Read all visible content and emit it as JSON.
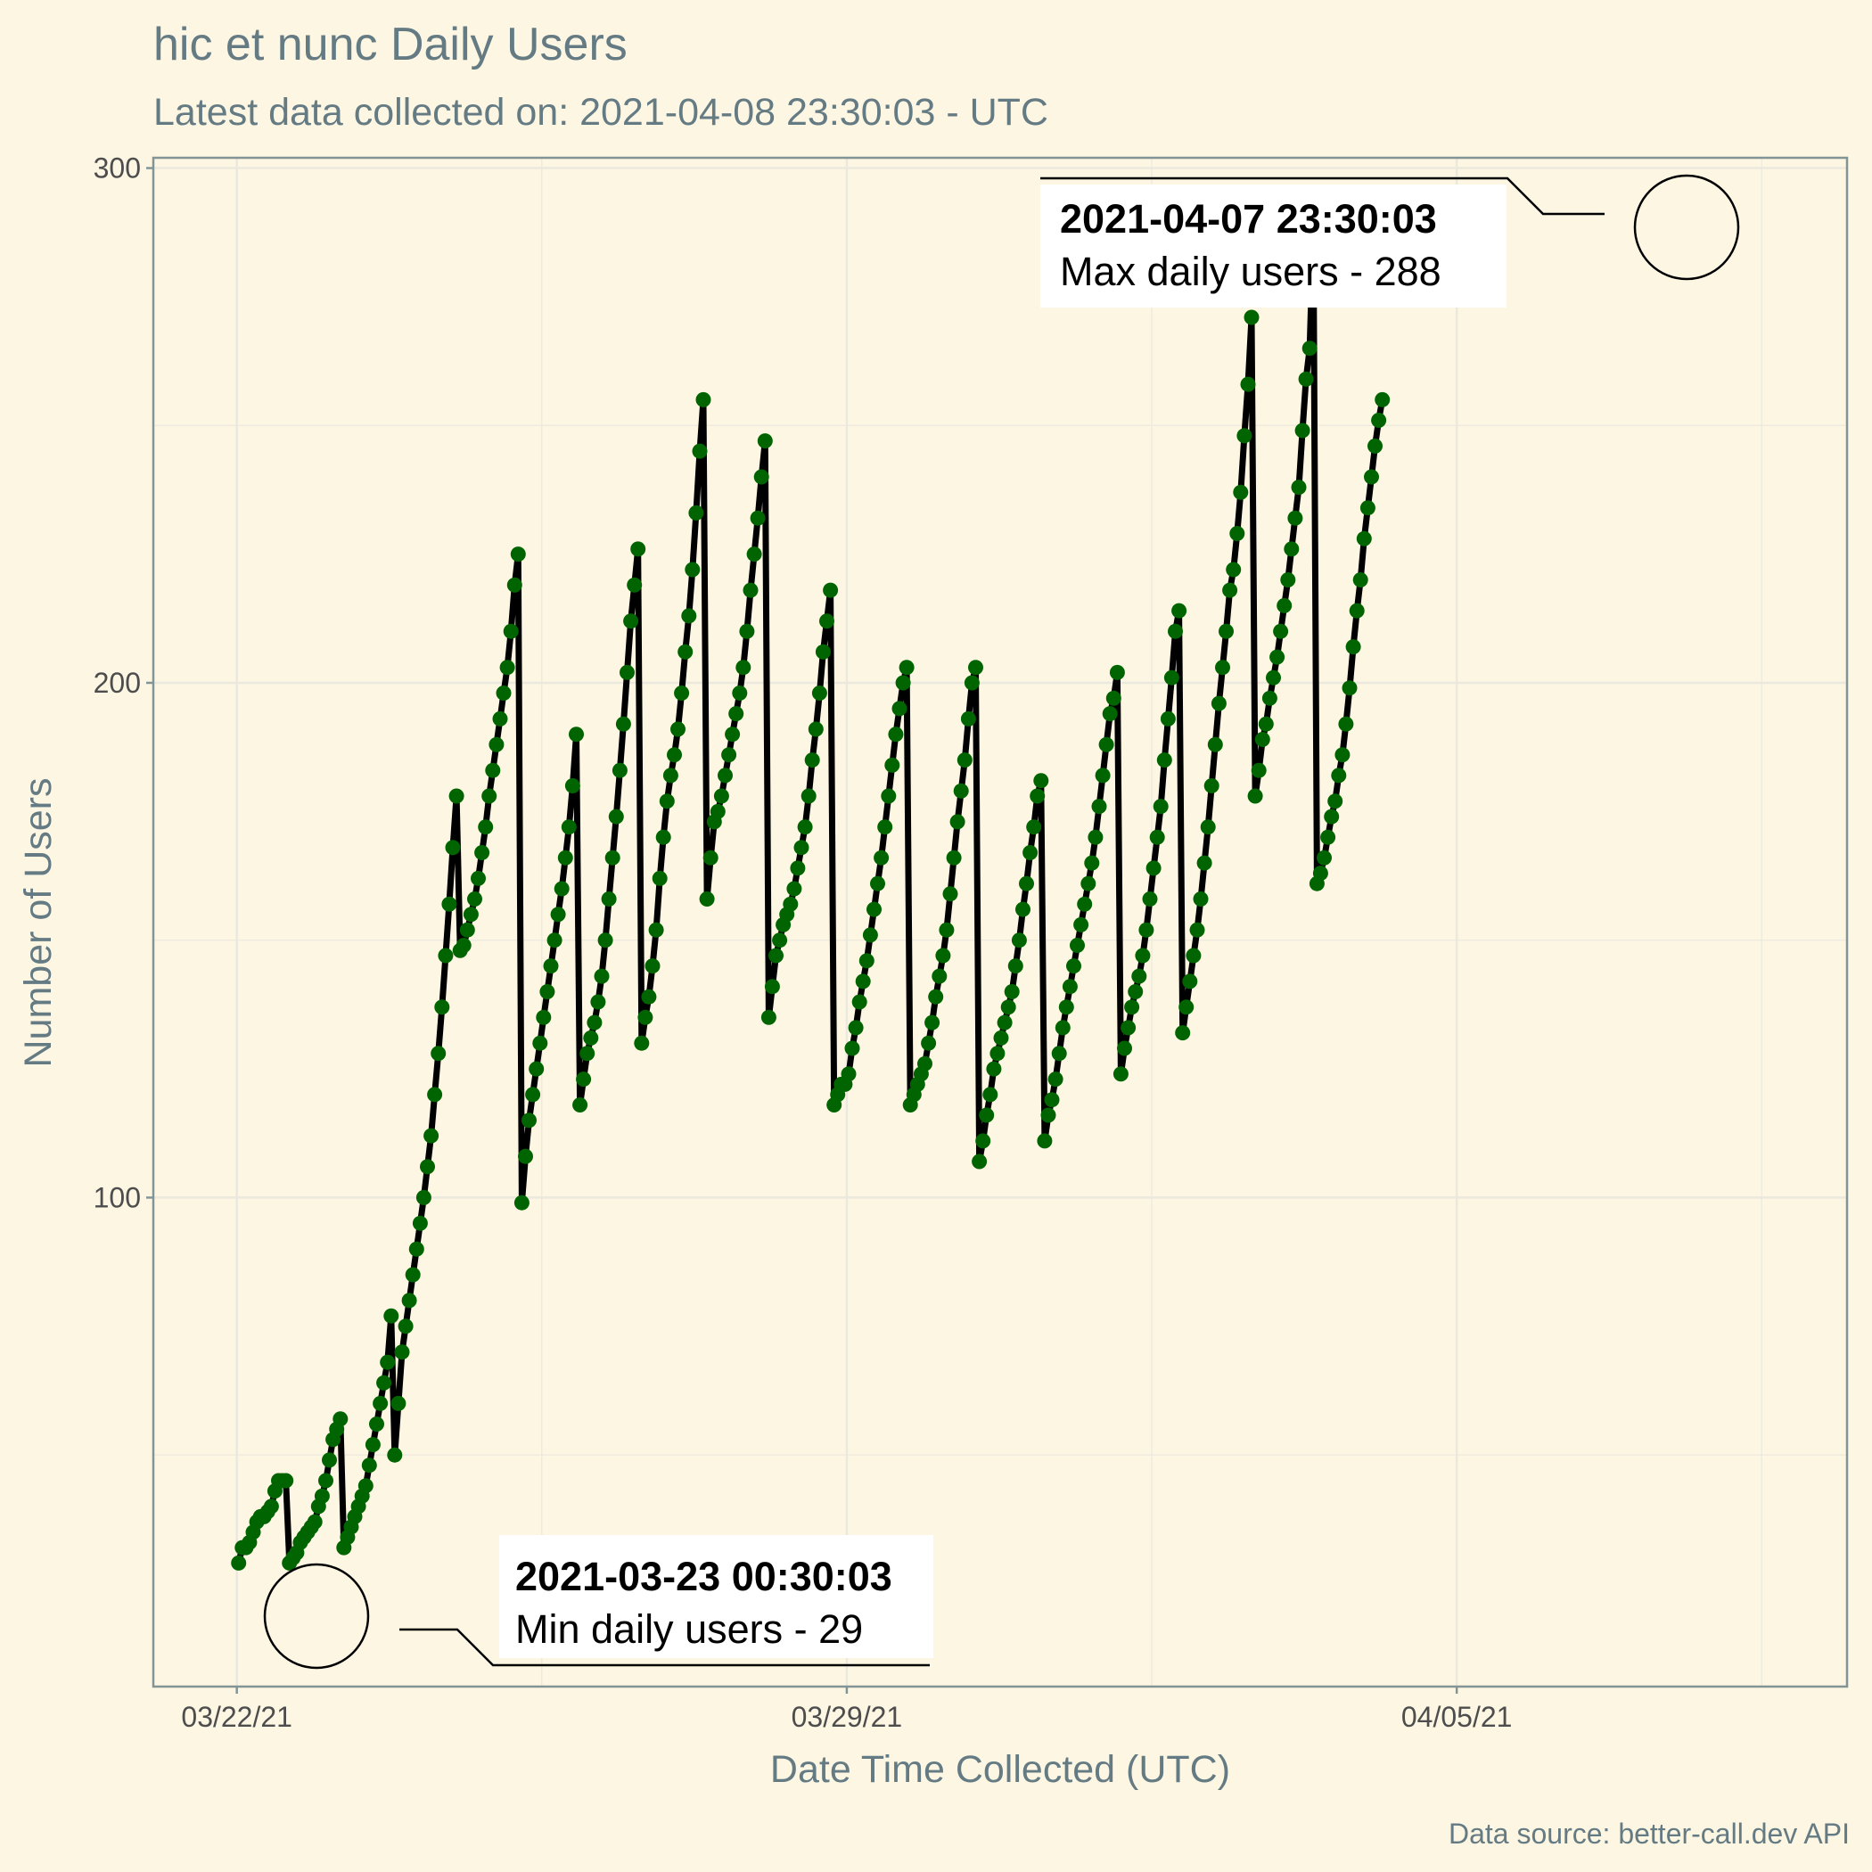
{
  "chart_data": {
    "type": "line",
    "title": "hic et nunc Daily Users",
    "subtitle": "Latest data collected on: 2021-04-08 23:30:03  - UTC",
    "xlabel": "Date Time Collected (UTC)",
    "ylabel": "Number of Users",
    "caption": "Data source: better-call.dev API",
    "x_range": [
      "2021-03-21T01:00",
      "2021-04-09T11:30"
    ],
    "ylim": [
      5,
      302
    ],
    "x_ticks": [
      {
        "label": "03/22/21",
        "date": "2021-03-22T00:00"
      },
      {
        "label": "03/29/21",
        "date": "2021-03-29T00:00"
      },
      {
        "label": "04/05/21",
        "date": "2021-04-05T00:00"
      }
    ],
    "y_ticks": [
      100,
      200,
      300
    ],
    "grid": true,
    "line_color": "#000000",
    "point_color": "#006400",
    "series": [
      {
        "start": "2021-03-22T00:30",
        "interval_hours": 1,
        "values": [
          [
            29,
            32,
            32,
            33,
            35,
            37,
            38,
            38,
            39,
            40,
            43,
            45,
            45,
            45
          ],
          [
            29,
            30,
            31,
            33,
            34,
            35,
            36,
            37,
            40,
            42,
            45,
            49,
            53,
            55,
            57
          ],
          [
            32,
            34,
            36,
            38,
            40,
            42,
            44,
            48,
            52,
            56,
            60,
            64,
            68,
            77
          ],
          [
            50,
            60,
            70,
            75,
            80,
            85,
            90,
            95,
            100,
            106,
            112,
            120,
            128,
            137,
            147,
            157,
            168,
            178
          ],
          [
            148,
            149,
            152,
            155,
            158,
            162,
            167,
            172,
            178,
            183,
            188,
            193,
            198,
            203,
            210,
            219,
            225
          ],
          [
            99,
            108,
            115,
            120,
            125,
            130,
            135,
            140,
            145,
            150,
            155,
            160,
            166,
            172,
            180,
            190
          ],
          [
            118,
            123,
            128,
            131,
            134,
            138,
            143,
            150,
            158,
            166,
            174,
            183,
            192,
            202,
            212,
            219,
            226
          ],
          [
            130,
            135,
            139,
            145,
            152,
            162,
            170,
            177,
            182,
            186,
            191,
            198,
            206,
            213,
            222,
            233,
            245,
            255
          ],
          [
            158,
            166,
            173,
            175,
            178,
            182,
            186,
            190,
            194,
            198,
            203,
            210,
            218,
            225,
            232,
            240,
            247
          ],
          [
            135,
            141,
            147,
            150,
            153,
            155,
            157,
            160,
            164,
            168,
            172,
            178,
            185,
            191,
            198,
            206,
            212,
            218
          ],
          [
            118,
            120,
            122,
            122,
            124,
            129,
            133,
            138,
            142,
            146,
            151,
            156,
            161,
            166,
            172,
            178,
            184,
            190,
            195,
            200,
            203
          ],
          [
            118,
            120,
            122,
            124,
            126,
            130,
            134,
            139,
            143,
            147,
            152,
            159,
            166,
            173,
            179,
            185,
            193,
            200,
            203
          ],
          [
            107,
            111,
            116,
            120,
            125,
            128,
            131,
            134,
            137,
            140,
            145,
            150,
            156,
            161,
            167,
            172,
            178,
            181
          ],
          [
            111,
            116,
            119,
            123,
            128,
            133,
            137,
            141,
            145,
            149,
            153,
            157,
            161,
            165,
            170,
            176,
            182,
            188,
            194,
            197,
            202
          ],
          [
            124,
            129,
            133,
            137,
            140,
            143,
            147,
            152,
            158,
            164,
            170,
            176,
            185,
            193,
            201,
            210,
            214
          ],
          [
            132,
            137,
            142,
            147,
            152,
            158,
            165,
            172,
            180,
            188,
            196,
            203,
            210,
            218,
            222,
            229,
            237,
            248,
            258,
            271
          ],
          [
            178,
            183,
            189,
            192,
            197,
            201,
            205,
            210,
            215,
            220,
            226,
            232,
            238,
            249,
            259,
            265,
            288
          ],
          [
            161,
            163,
            166,
            170,
            174,
            177,
            182,
            186,
            192,
            199,
            207,
            214,
            220,
            228,
            234,
            240,
            246,
            251,
            255
          ]
        ]
      }
    ],
    "annotations": [
      {
        "time": "2021-03-23T00:30",
        "value": 29,
        "headline": "2021-03-23 00:30:03",
        "text": "Min daily users - 29"
      },
      {
        "time": "2021-04-07T23:30",
        "value": 288,
        "headline": "2021-04-07 23:30:03",
        "text": "Max daily users - 288"
      }
    ]
  }
}
